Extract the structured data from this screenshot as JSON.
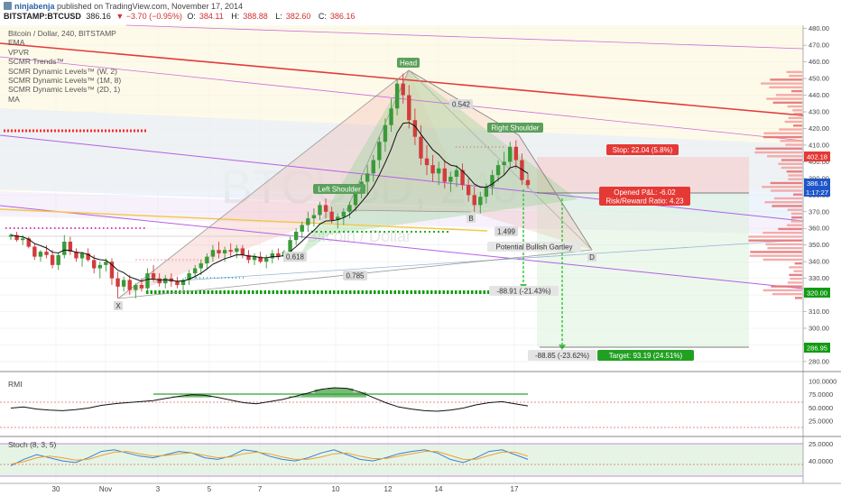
{
  "header": {
    "user": "ninjabenja",
    "published": "published on TradingView.com, November 17, 2014",
    "symbol": "BITSTAMP:BTCUSD",
    "price": "386.16",
    "change": "▼ −3.70 (−0.95%)",
    "open_label": "O:",
    "open": "384.11",
    "high_label": "H:",
    "high": "388.88",
    "low_label": "L:",
    "low": "382.60",
    "close_label": "C:",
    "close": "386.16"
  },
  "legend": [
    "Bitcoin / Dollar, 240, BITSTAMP",
    "EMA",
    "VPVR",
    "SCMR Trends™",
    "SCMR Dynamic Levels™ (W, 2)",
    "SCMR Dynamic Levels™ (1M, 8)",
    "SCMR Dynamic Levels™ (2D, 1)",
    "MA"
  ],
  "watermark": {
    "symbol": "BTCUSD",
    "interval": "240",
    "name": "Bitcoin / Dollar"
  },
  "annotations": {
    "head": "Head",
    "left_shoulder": "Left Shoulder",
    "right_shoulder": "Right Shoulder",
    "ratio_top": "0.542",
    "ratio_mid": "1.499",
    "ratio_left": "0.618",
    "ratio_bottom": "0.785",
    "point_x": "X",
    "point_b": "B",
    "point_d": "D",
    "pattern": "Potential Bullish Gartley",
    "stop": "Stop: 22.04 (5.8%)",
    "pnl": "Opened P&L: -6.02",
    "risk_reward": "Risk/Reward Ratio: 4.23",
    "target": "Target: 93.19 (24.51%)",
    "measure_short": "-88.91 (-21.43%)",
    "measure_long": "-88.85 (-23.62%)"
  },
  "price_badges": {
    "stop_price": "402.18",
    "last_price": "386.16",
    "countdown": "1:17:27",
    "level": "320.00",
    "target_price": "286.95"
  },
  "indicators": {
    "rmi": {
      "title": "RMI",
      "ticks": [
        "100.0000",
        "75.0000",
        "50.0000",
        "25.0000"
      ]
    },
    "stoch": {
      "title": "Stoch (8, 3, 5)",
      "ticks": [
        "25.0000",
        "40.0000"
      ]
    }
  },
  "colors": {
    "up": "#3a9a3a",
    "down": "#d23c3c",
    "trend_red": "#e33a3a",
    "channel": "#b560e6",
    "ma_yellow": "#f3c742",
    "level_green": "#0f9b0f",
    "dyn_red": "#ff2a2a",
    "dyn_magenta": "#d93ab8"
  },
  "chart_data": {
    "type": "candlestick",
    "title": "Bitcoin / Dollar, 240, BITSTAMP",
    "x_tick_labels": [
      "30",
      "Nov",
      "3",
      "5",
      "7",
      "10",
      "12",
      "14",
      "17"
    ],
    "y_ticks": [
      280,
      290,
      300,
      310,
      320,
      330,
      340,
      350,
      360,
      370,
      380,
      390,
      400,
      410,
      420,
      430,
      440,
      450,
      460,
      470,
      480
    ],
    "ylim": [
      274,
      482
    ],
    "grid": true,
    "candles": [
      [
        355,
        357,
        353,
        356
      ],
      [
        356,
        358,
        352,
        353
      ],
      [
        353,
        356,
        350,
        354
      ],
      [
        354,
        355,
        348,
        349
      ],
      [
        349,
        351,
        341,
        343
      ],
      [
        343,
        347,
        340,
        346
      ],
      [
        346,
        350,
        342,
        344
      ],
      [
        344,
        347,
        336,
        338
      ],
      [
        338,
        345,
        335,
        344
      ],
      [
        344,
        356,
        342,
        352
      ],
      [
        352,
        355,
        344,
        346
      ],
      [
        346,
        348,
        340,
        342
      ],
      [
        342,
        346,
        337,
        345
      ],
      [
        345,
        348,
        340,
        341
      ],
      [
        341,
        344,
        333,
        336
      ],
      [
        336,
        340,
        330,
        338
      ],
      [
        338,
        342,
        334,
        340
      ],
      [
        340,
        342,
        326,
        330
      ],
      [
        330,
        334,
        318,
        325
      ],
      [
        325,
        331,
        322,
        329
      ],
      [
        329,
        332,
        320,
        323
      ],
      [
        323,
        327,
        318,
        326
      ],
      [
        326,
        330,
        322,
        324
      ],
      [
        324,
        336,
        322,
        333
      ],
      [
        333,
        338,
        328,
        330
      ],
      [
        330,
        333,
        325,
        327
      ],
      [
        327,
        332,
        324,
        330
      ],
      [
        330,
        333,
        325,
        328
      ],
      [
        328,
        331,
        324,
        326
      ],
      [
        326,
        330,
        322,
        329
      ],
      [
        329,
        335,
        326,
        333
      ],
      [
        333,
        338,
        330,
        336
      ],
      [
        336,
        341,
        332,
        339
      ],
      [
        339,
        345,
        336,
        343
      ],
      [
        343,
        350,
        340,
        347
      ],
      [
        347,
        352,
        342,
        345
      ],
      [
        345,
        349,
        340,
        347
      ],
      [
        347,
        351,
        343,
        346
      ],
      [
        346,
        350,
        342,
        348
      ],
      [
        348,
        350,
        342,
        344
      ],
      [
        344,
        347,
        339,
        341
      ],
      [
        341,
        345,
        338,
        343
      ],
      [
        343,
        346,
        339,
        340
      ],
      [
        340,
        344,
        336,
        342
      ],
      [
        342,
        347,
        339,
        345
      ],
      [
        345,
        348,
        341,
        343
      ],
      [
        343,
        347,
        340,
        346
      ],
      [
        346,
        355,
        344,
        353
      ],
      [
        353,
        360,
        350,
        358
      ],
      [
        358,
        364,
        354,
        362
      ],
      [
        362,
        370,
        358,
        366
      ],
      [
        366,
        372,
        361,
        368
      ],
      [
        368,
        376,
        365,
        374
      ],
      [
        374,
        378,
        366,
        370
      ],
      [
        370,
        373,
        363,
        365
      ],
      [
        365,
        369,
        360,
        367
      ],
      [
        367,
        372,
        362,
        370
      ],
      [
        370,
        376,
        366,
        374
      ],
      [
        374,
        384,
        370,
        382
      ],
      [
        382,
        392,
        378,
        388
      ],
      [
        388,
        398,
        380,
        393
      ],
      [
        393,
        404,
        388,
        401
      ],
      [
        401,
        415,
        396,
        412
      ],
      [
        412,
        426,
        406,
        422
      ],
      [
        422,
        438,
        418,
        432
      ],
      [
        432,
        450,
        428,
        447
      ],
      [
        447,
        453,
        435,
        440
      ],
      [
        440,
        446,
        420,
        425
      ],
      [
        425,
        432,
        410,
        415
      ],
      [
        415,
        422,
        398,
        402
      ],
      [
        402,
        410,
        392,
        398
      ],
      [
        398,
        404,
        388,
        393
      ],
      [
        393,
        400,
        386,
        396
      ],
      [
        396,
        401,
        384,
        388
      ],
      [
        388,
        394,
        382,
        391
      ],
      [
        391,
        398,
        385,
        395
      ],
      [
        395,
        399,
        383,
        386
      ],
      [
        386,
        390,
        376,
        380
      ],
      [
        380,
        385,
        370,
        374
      ],
      [
        374,
        382,
        369,
        379
      ],
      [
        379,
        387,
        375,
        385
      ],
      [
        385,
        395,
        380,
        392
      ],
      [
        392,
        401,
        388,
        398
      ],
      [
        398,
        406,
        392,
        400
      ],
      [
        400,
        412,
        396,
        409
      ],
      [
        409,
        413,
        396,
        401
      ],
      [
        401,
        405,
        386,
        389
      ],
      [
        389,
        393,
        384,
        386
      ]
    ],
    "rmi": [
      50,
      52,
      48,
      46,
      45,
      47,
      50,
      55,
      58,
      60,
      62,
      64,
      68,
      72,
      75,
      74,
      70,
      65,
      60,
      58,
      62,
      66,
      72,
      78,
      85,
      88,
      87,
      80,
      70,
      60,
      52,
      48,
      45,
      44,
      46,
      50,
      56,
      60,
      62,
      58,
      54
    ],
    "stoch_k": [
      20,
      28,
      34,
      30,
      26,
      24,
      30,
      38,
      40,
      36,
      32,
      30,
      34,
      38,
      36,
      30,
      28,
      32,
      40,
      38,
      32,
      28,
      26,
      30,
      36,
      40,
      34,
      28,
      26,
      30,
      35,
      38,
      40,
      36,
      28,
      24,
      30,
      38,
      40,
      34,
      28
    ],
    "stoch_d": [
      22,
      25,
      30,
      32,
      30,
      27,
      28,
      33,
      37,
      38,
      35,
      32,
      33,
      35,
      36,
      33,
      30,
      31,
      35,
      37,
      35,
      31,
      28,
      28,
      31,
      35,
      36,
      32,
      29,
      29,
      32,
      35,
      38,
      38,
      33,
      28,
      28,
      33,
      37,
      37,
      32
    ]
  }
}
